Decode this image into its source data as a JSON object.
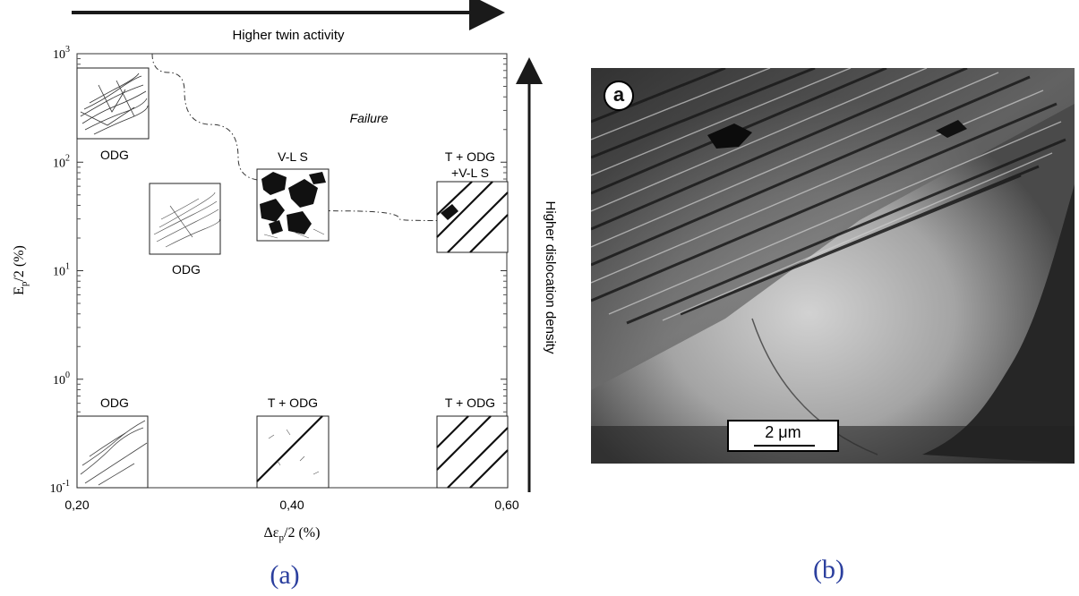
{
  "chart_data": {
    "type": "scatter",
    "top_arrow_label": "Higher twin activity",
    "right_arrow_label": "Higher dislocation density",
    "xlabel": "Δε",
    "xlabel_sub": "p",
    "xlabel_tail": "/2 (%)",
    "ylabel": "E",
    "ylabel_sub": "p",
    "ylabel_tail": "/2 (%)",
    "x_ticks": [
      "0,20",
      "0,40",
      "0,60"
    ],
    "y_ticks": [
      {
        "base": "10",
        "exp": "-1"
      },
      {
        "base": "10",
        "exp": "0"
      },
      {
        "base": "10",
        "exp": "1"
      },
      {
        "base": "10",
        "exp": "2"
      },
      {
        "base": "10",
        "exp": "3"
      }
    ],
    "xlim": [
      0.2,
      0.6
    ],
    "ylim": [
      0.1,
      1000
    ],
    "y_scale": "log",
    "failure_label": "Failure",
    "failure_boundary": [
      {
        "x": 0.27,
        "y": 1000
      },
      {
        "x": 0.3,
        "y": 450
      },
      {
        "x": 0.35,
        "y": 110
      },
      {
        "x": 0.4,
        "y": 42
      },
      {
        "x": 0.5,
        "y": 30
      },
      {
        "x": 0.56,
        "y": 28
      }
    ],
    "regions": [
      {
        "label": "ODG",
        "x": 0.2,
        "y": 600
      },
      {
        "label": "ODG",
        "x": 0.28,
        "y": 40
      },
      {
        "label": "V-L S",
        "x": 0.4,
        "y": 50
      },
      {
        "label": "T + ODG",
        "label2": "+V-L S",
        "x": 0.57,
        "y": 50
      },
      {
        "label": "ODG",
        "x": 0.235,
        "y": 0.2
      },
      {
        "label": "T + ODG",
        "x": 0.4,
        "y": 0.2
      },
      {
        "label": "T + ODG",
        "x": 0.57,
        "y": 0.2
      }
    ]
  },
  "micrograph": {
    "panel_label": "a",
    "scale_bar": "2 μm"
  },
  "captions": {
    "left": "(a)",
    "right": "(b)"
  }
}
